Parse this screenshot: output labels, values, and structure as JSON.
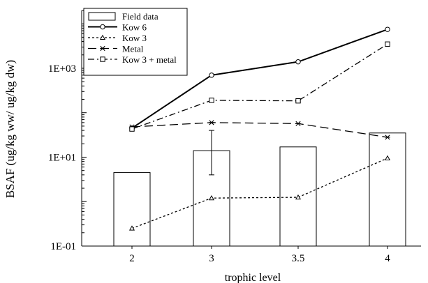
{
  "chart_data": {
    "type": "bar",
    "title": "",
    "xlabel": "trophic level",
    "ylabel": "BSAF (ug/kg ww/ ug/kg dw)",
    "yscale": "log",
    "ylim": [
      0.1,
      20000
    ],
    "yticks": [
      {
        "value": 0.1,
        "label": "1E-01"
      },
      {
        "value": 10,
        "label": "1E+01"
      },
      {
        "value": 1000,
        "label": "1E+03"
      }
    ],
    "categories": [
      "2",
      "3",
      "3.5",
      "4"
    ],
    "grid": false,
    "legend_position": "top-left",
    "bars": {
      "name": "Field data",
      "values": [
        4.5,
        14,
        17,
        35
      ],
      "error_bars": [
        null,
        {
          "low": 4,
          "high": 40
        },
        null,
        null
      ],
      "fill": "#ffffff",
      "stroke": "#000000"
    },
    "series": [
      {
        "name": "Kow 6",
        "values": [
          45,
          700,
          1400,
          7500
        ],
        "dash": "solid",
        "width": 2,
        "marker": "circle"
      },
      {
        "name": "Kow 3",
        "values": [
          0.25,
          1.2,
          1.25,
          9.5
        ],
        "dash": "dotted",
        "width": 1.3,
        "marker": "triangle"
      },
      {
        "name": "Metal",
        "values": [
          48,
          60,
          57,
          28
        ],
        "dash": "dashed",
        "width": 1.3,
        "marker": "star"
      },
      {
        "name": "Kow 3 + metal",
        "values": [
          43,
          190,
          185,
          3500
        ],
        "dash": "dashdot",
        "width": 1.3,
        "marker": "square"
      }
    ]
  }
}
